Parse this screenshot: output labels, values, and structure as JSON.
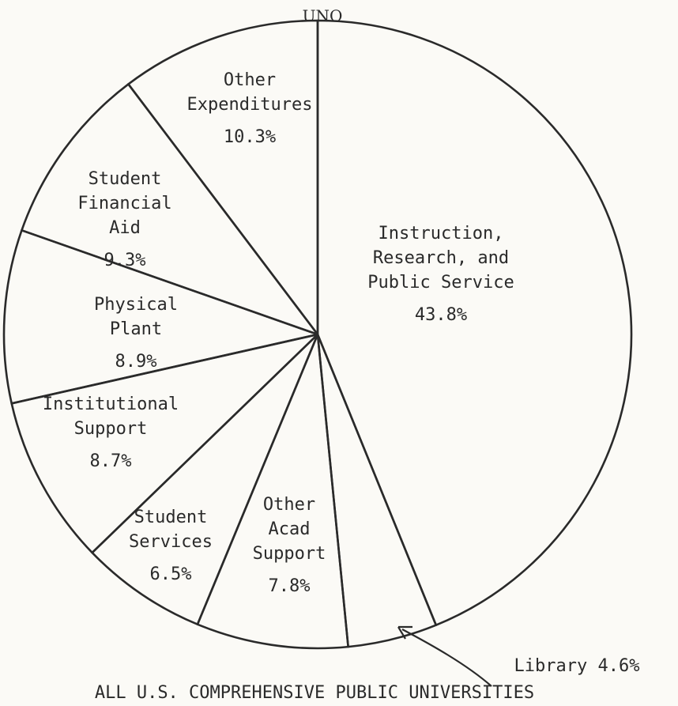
{
  "chart_data": {
    "type": "pie",
    "title": "UNO",
    "caption": "ALL U.S. COMPREHENSIVE PUBLIC UNIVERSITIES",
    "slices": [
      {
        "label": "Instruction, Research, and Public Service",
        "value": 43.8,
        "value_label": "43.8%"
      },
      {
        "label": "Library",
        "value": 4.6,
        "value_label": "4.6%"
      },
      {
        "label": "Other Acad Support",
        "value": 7.8,
        "value_label": "7.8%"
      },
      {
        "label": "Student Services",
        "value": 6.5,
        "value_label": "6.5%"
      },
      {
        "label": "Institutional Support",
        "value": 8.7,
        "value_label": "8.7%"
      },
      {
        "label": "Physical Plant",
        "value": 8.9,
        "value_label": "8.9%"
      },
      {
        "label": "Student Financial Aid",
        "value": 9.3,
        "value_label": "9.3%"
      },
      {
        "label": "Other Expenditures",
        "value": 10.3,
        "value_label": "10.3%"
      }
    ],
    "label_lines": [
      [
        "Instruction,",
        "Research, and",
        "Public Service",
        "43.8%"
      ],
      [
        "Library",
        "4.6%"
      ],
      [
        "Other",
        "Acad",
        "Support",
        "7.8%"
      ],
      [
        "Student",
        "Services",
        "6.5%"
      ],
      [
        "Institutional",
        "Support",
        "8.7%"
      ],
      [
        "Physical",
        "Plant",
        "8.9%"
      ],
      [
        "Student",
        "Financial",
        "Aid",
        "9.3%"
      ],
      [
        "Other",
        "Expenditures",
        "10.3%"
      ]
    ]
  }
}
